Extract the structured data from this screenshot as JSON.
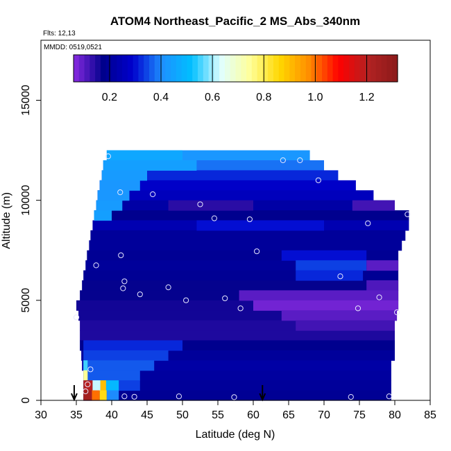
{
  "chart_data": {
    "type": "heatmap",
    "title": "ATOM4 Northeast_Pacific_2 MS_Abs_340nm",
    "flights_label": "Flts: 12,13",
    "mmdd_label": "MMDD: 0519,0521",
    "xlabel": "Latitude (deg N)",
    "ylabel": "Altitude (m)",
    "xlim": [
      30,
      85
    ],
    "ylim": [
      0,
      18000
    ],
    "x_ticks": [
      "30",
      "35",
      "40",
      "45",
      "50",
      "55",
      "60",
      "65",
      "70",
      "75",
      "80",
      "85"
    ],
    "y_ticks": [
      "0",
      "5000",
      "10000",
      "15000"
    ],
    "colorbar": {
      "min": 0.06,
      "max": 1.32,
      "ticks": [
        "0.2",
        "0.4",
        "0.6",
        "0.8",
        "1.0",
        "1.2"
      ],
      "colors": [
        "#8a2be2",
        "#00008b",
        "#0000cd",
        "#1e90ff",
        "#00bfff",
        "#e0ffff",
        "#ffff99",
        "#ffd700",
        "#ff8c00",
        "#ff0000",
        "#b22222",
        "#8b1a1a"
      ]
    },
    "arrows_lat": [
      34.7,
      61.3
    ],
    "cells": [
      {
        "alt": 12000,
        "lat0": 39.3,
        "lat1": 68.0,
        "v": 0.42
      },
      {
        "alt": 11500,
        "lat0": 38.8,
        "lat1": 70.0,
        "v": 0.38
      },
      {
        "alt": 11000,
        "lat0": 38.6,
        "lat1": 72.0,
        "v": 0.32
      },
      {
        "alt": 10500,
        "lat0": 38.3,
        "lat1": 74.5,
        "v": 0.28
      },
      {
        "alt": 10000,
        "lat0": 38.0,
        "lat1": 77.0,
        "v": 0.26
      },
      {
        "alt": 9500,
        "lat0": 37.8,
        "lat1": 80.0,
        "v": 0.22
      },
      {
        "alt": 9000,
        "lat0": 37.5,
        "lat1": 82.0,
        "v": 0.18
      },
      {
        "alt": 8500,
        "lat0": 37.3,
        "lat1": 82.0,
        "v": 0.24
      },
      {
        "alt": 8000,
        "lat0": 37.0,
        "lat1": 81.5,
        "v": 0.2
      },
      {
        "alt": 7500,
        "lat0": 36.8,
        "lat1": 81.0,
        "v": 0.2
      },
      {
        "alt": 7000,
        "lat0": 36.5,
        "lat1": 80.5,
        "v": 0.19
      },
      {
        "alt": 6500,
        "lat0": 36.3,
        "lat1": 80.5,
        "v": 0.2
      },
      {
        "alt": 6000,
        "lat0": 36.0,
        "lat1": 80.5,
        "v": 0.19
      },
      {
        "alt": 5500,
        "lat0": 35.8,
        "lat1": 80.5,
        "v": 0.17
      },
      {
        "alt": 5000,
        "lat0": 35.5,
        "lat1": 80.5,
        "v": 0.17
      },
      {
        "alt": 4500,
        "lat0": 35.0,
        "lat1": 80.5,
        "v": 0.16
      },
      {
        "alt": 4000,
        "lat0": 35.3,
        "lat1": 80.3,
        "v": 0.16
      },
      {
        "alt": 3500,
        "lat0": 35.5,
        "lat1": 80.0,
        "v": 0.15
      },
      {
        "alt": 3000,
        "lat0": 35.5,
        "lat1": 80.0,
        "v": 0.15
      },
      {
        "alt": 2500,
        "lat0": 35.5,
        "lat1": 80.0,
        "v": 0.18
      },
      {
        "alt": 2000,
        "lat0": 35.7,
        "lat1": 80.0,
        "v": 0.2
      },
      {
        "alt": 1500,
        "lat0": 35.8,
        "lat1": 79.5,
        "v": 0.22
      },
      {
        "alt": 1000,
        "lat0": 36.0,
        "lat1": 79.5,
        "v": 0.21
      },
      {
        "alt": 500,
        "lat0": 36.0,
        "lat1": 79.5,
        "v": 0.2
      },
      {
        "alt": 0,
        "lat0": 36.0,
        "lat1": 79.5,
        "v": 0.19
      }
    ],
    "patches": [
      {
        "alt": 12000,
        "lat0": 39.3,
        "lat1": 50.0,
        "v": 0.46
      },
      {
        "alt": 11500,
        "lat0": 38.8,
        "lat1": 52.0,
        "v": 0.44
      },
      {
        "alt": 11000,
        "lat0": 38.6,
        "lat1": 45.0,
        "v": 0.43
      },
      {
        "alt": 10500,
        "lat0": 38.3,
        "lat1": 44.0,
        "v": 0.42
      },
      {
        "alt": 10000,
        "lat0": 38.0,
        "lat1": 42.5,
        "v": 0.42
      },
      {
        "alt": 9500,
        "lat0": 37.8,
        "lat1": 41.5,
        "v": 0.43
      },
      {
        "alt": 9000,
        "lat0": 37.5,
        "lat1": 40.0,
        "v": 0.44
      },
      {
        "alt": 9500,
        "lat0": 48.0,
        "lat1": 60.0,
        "v": 0.14
      },
      {
        "alt": 9500,
        "lat0": 74.0,
        "lat1": 80.0,
        "v": 0.12
      },
      {
        "alt": 8500,
        "lat0": 52.0,
        "lat1": 70.0,
        "v": 0.3
      },
      {
        "alt": 7000,
        "lat0": 64.0,
        "lat1": 76.0,
        "v": 0.3
      },
      {
        "alt": 6500,
        "lat0": 66.0,
        "lat1": 76.0,
        "v": 0.34
      },
      {
        "alt": 6000,
        "lat0": 66.0,
        "lat1": 75.5,
        "v": 0.32
      },
      {
        "alt": 6500,
        "lat0": 76.0,
        "lat1": 80.5,
        "v": 0.1
      },
      {
        "alt": 5500,
        "lat0": 76.0,
        "lat1": 80.5,
        "v": 0.11
      },
      {
        "alt": 5000,
        "lat0": 58.0,
        "lat1": 80.5,
        "v": 0.1
      },
      {
        "alt": 4500,
        "lat0": 60.0,
        "lat1": 80.5,
        "v": 0.08
      },
      {
        "alt": 4000,
        "lat0": 64.0,
        "lat1": 80.3,
        "v": 0.1
      },
      {
        "alt": 3500,
        "lat0": 66.0,
        "lat1": 80.0,
        "v": 0.12
      },
      {
        "alt": 2500,
        "lat0": 36.0,
        "lat1": 50.0,
        "v": 0.32
      },
      {
        "alt": 2000,
        "lat0": 36.0,
        "lat1": 48.0,
        "v": 0.34
      },
      {
        "alt": 1500,
        "lat0": 36.0,
        "lat1": 46.0,
        "v": 0.36
      },
      {
        "alt": 1000,
        "lat0": 36.0,
        "lat1": 44.0,
        "v": 0.36
      },
      {
        "alt": 500,
        "lat0": 36.0,
        "lat1": 44.0,
        "v": 0.34
      },
      {
        "alt": 1500,
        "lat0": 36.0,
        "lat1": 36.6,
        "v": 0.55
      },
      {
        "alt": 1000,
        "lat0": 36.0,
        "lat1": 36.6,
        "v": 0.75
      },
      {
        "alt": 500,
        "lat0": 36.0,
        "lat1": 41.0,
        "v": 0.5
      },
      {
        "alt": 500,
        "lat0": 36.0,
        "lat1": 37.3,
        "v": 1.2
      },
      {
        "alt": 500,
        "lat0": 37.3,
        "lat1": 38.4,
        "v": 0.62
      },
      {
        "alt": 500,
        "lat0": 38.4,
        "lat1": 39.2,
        "v": 0.9
      },
      {
        "alt": 0,
        "lat0": 36.0,
        "lat1": 37.2,
        "v": 1.25
      },
      {
        "alt": 0,
        "lat0": 37.2,
        "lat1": 38.3,
        "v": 1.0
      },
      {
        "alt": 0,
        "lat0": 38.3,
        "lat1": 39.3,
        "v": 0.85
      },
      {
        "alt": 0,
        "lat0": 39.3,
        "lat1": 41.0,
        "v": 0.4
      }
    ],
    "points": [
      [
        39.5,
        12200
      ],
      [
        64.2,
        12000
      ],
      [
        66.6,
        12000
      ],
      [
        69.2,
        11000
      ],
      [
        41.2,
        10400
      ],
      [
        45.8,
        10300
      ],
      [
        52.5,
        9800
      ],
      [
        54.5,
        9100
      ],
      [
        59.5,
        9050
      ],
      [
        76.2,
        8850
      ],
      [
        81.8,
        9300
      ],
      [
        60.5,
        7450
      ],
      [
        41.3,
        7250
      ],
      [
        37.8,
        6750
      ],
      [
        41.8,
        5950
      ],
      [
        41.6,
        5600
      ],
      [
        48.0,
        5650
      ],
      [
        44.0,
        5300
      ],
      [
        50.5,
        5000
      ],
      [
        56.0,
        5100
      ],
      [
        58.2,
        4600
      ],
      [
        72.3,
        6200
      ],
      [
        77.8,
        5150
      ],
      [
        74.8,
        4600
      ],
      [
        80.3,
        4400
      ],
      [
        35.0,
        4150
      ],
      [
        37.0,
        1550
      ],
      [
        36.6,
        800
      ],
      [
        36.3,
        450
      ],
      [
        41.8,
        200
      ],
      [
        43.2,
        180
      ],
      [
        49.5,
        200
      ],
      [
        57.3,
        160
      ],
      [
        73.8,
        170
      ],
      [
        79.2,
        200
      ]
    ]
  }
}
